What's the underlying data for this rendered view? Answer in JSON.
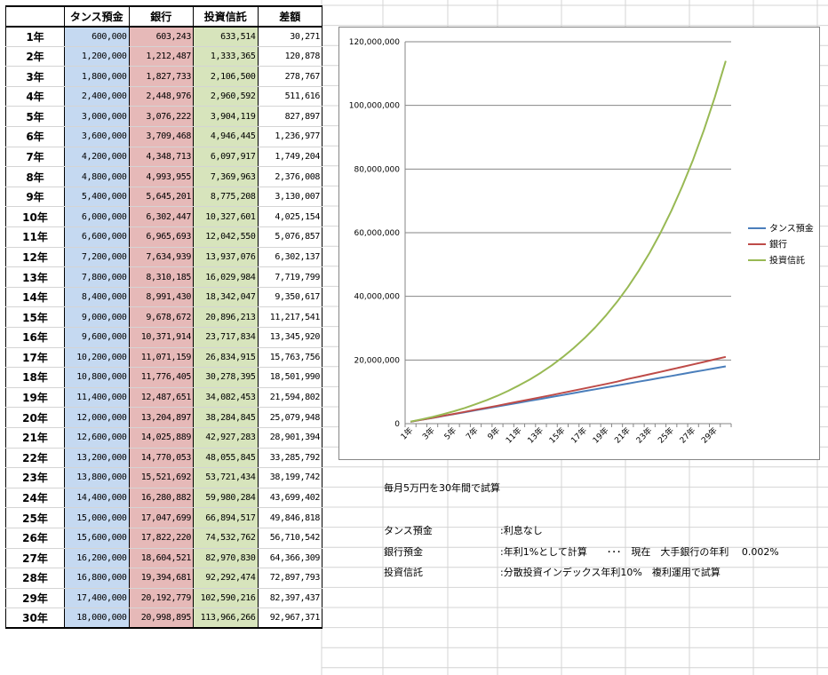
{
  "table": {
    "headers": [
      "",
      "タンス預金",
      "銀行",
      "投資信託",
      "差額"
    ],
    "rows": [
      {
        "year": "1年",
        "tansu": "600,000",
        "bank": "603,243",
        "invest": "633,514",
        "diff": "30,271"
      },
      {
        "year": "2年",
        "tansu": "1,200,000",
        "bank": "1,212,487",
        "invest": "1,333,365",
        "diff": "120,878"
      },
      {
        "year": "3年",
        "tansu": "1,800,000",
        "bank": "1,827,733",
        "invest": "2,106,500",
        "diff": "278,767"
      },
      {
        "year": "4年",
        "tansu": "2,400,000",
        "bank": "2,448,976",
        "invest": "2,960,592",
        "diff": "511,616"
      },
      {
        "year": "5年",
        "tansu": "3,000,000",
        "bank": "3,076,222",
        "invest": "3,904,119",
        "diff": "827,897"
      },
      {
        "year": "6年",
        "tansu": "3,600,000",
        "bank": "3,709,468",
        "invest": "4,946,445",
        "diff": "1,236,977"
      },
      {
        "year": "7年",
        "tansu": "4,200,000",
        "bank": "4,348,713",
        "invest": "6,097,917",
        "diff": "1,749,204"
      },
      {
        "year": "8年",
        "tansu": "4,800,000",
        "bank": "4,993,955",
        "invest": "7,369,963",
        "diff": "2,376,008"
      },
      {
        "year": "9年",
        "tansu": "5,400,000",
        "bank": "5,645,201",
        "invest": "8,775,208",
        "diff": "3,130,007"
      },
      {
        "year": "10年",
        "tansu": "6,000,000",
        "bank": "6,302,447",
        "invest": "10,327,601",
        "diff": "4,025,154"
      },
      {
        "year": "11年",
        "tansu": "6,600,000",
        "bank": "6,965,693",
        "invest": "12,042,550",
        "diff": "5,076,857"
      },
      {
        "year": "12年",
        "tansu": "7,200,000",
        "bank": "7,634,939",
        "invest": "13,937,076",
        "diff": "6,302,137"
      },
      {
        "year": "13年",
        "tansu": "7,800,000",
        "bank": "8,310,185",
        "invest": "16,029,984",
        "diff": "7,719,799"
      },
      {
        "year": "14年",
        "tansu": "8,400,000",
        "bank": "8,991,430",
        "invest": "18,342,047",
        "diff": "9,350,617"
      },
      {
        "year": "15年",
        "tansu": "9,000,000",
        "bank": "9,678,672",
        "invest": "20,896,213",
        "diff": "11,217,541"
      },
      {
        "year": "16年",
        "tansu": "9,600,000",
        "bank": "10,371,914",
        "invest": "23,717,834",
        "diff": "13,345,920"
      },
      {
        "year": "17年",
        "tansu": "10,200,000",
        "bank": "11,071,159",
        "invest": "26,834,915",
        "diff": "15,763,756"
      },
      {
        "year": "18年",
        "tansu": "10,800,000",
        "bank": "11,776,405",
        "invest": "30,278,395",
        "diff": "18,501,990"
      },
      {
        "year": "19年",
        "tansu": "11,400,000",
        "bank": "12,487,651",
        "invest": "34,082,453",
        "diff": "21,594,802"
      },
      {
        "year": "20年",
        "tansu": "12,000,000",
        "bank": "13,204,897",
        "invest": "38,284,845",
        "diff": "25,079,948"
      },
      {
        "year": "21年",
        "tansu": "12,600,000",
        "bank": "14,025,889",
        "invest": "42,927,283",
        "diff": "28,901,394"
      },
      {
        "year": "22年",
        "tansu": "13,200,000",
        "bank": "14,770,053",
        "invest": "48,055,845",
        "diff": "33,285,792"
      },
      {
        "year": "23年",
        "tansu": "13,800,000",
        "bank": "15,521,692",
        "invest": "53,721,434",
        "diff": "38,199,742"
      },
      {
        "year": "24年",
        "tansu": "14,400,000",
        "bank": "16,280,882",
        "invest": "59,980,284",
        "diff": "43,699,402"
      },
      {
        "year": "25年",
        "tansu": "15,000,000",
        "bank": "17,047,699",
        "invest": "66,894,517",
        "diff": "49,846,818"
      },
      {
        "year": "26年",
        "tansu": "15,600,000",
        "bank": "17,822,220",
        "invest": "74,532,762",
        "diff": "56,710,542"
      },
      {
        "year": "27年",
        "tansu": "16,200,000",
        "bank": "18,604,521",
        "invest": "82,970,830",
        "diff": "64,366,309"
      },
      {
        "year": "28年",
        "tansu": "16,800,000",
        "bank": "19,394,681",
        "invest": "92,292,474",
        "diff": "72,897,793"
      },
      {
        "year": "29年",
        "tansu": "17,400,000",
        "bank": "20,192,779",
        "invest": "102,590,216",
        "diff": "82,397,437"
      },
      {
        "year": "30年",
        "tansu": "18,000,000",
        "bank": "20,998,895",
        "invest": "113,966,266",
        "diff": "92,967,371"
      }
    ]
  },
  "colors": {
    "tansu_fill": "#c5d9f1",
    "bank_fill": "#e6b9b8",
    "invest_fill": "#d7e4bc",
    "grid": "#d4d4d4",
    "line_tansu": "#4a7ebb",
    "line_bank": "#be4b48",
    "line_invest": "#98b954"
  },
  "chart_data": {
    "type": "line",
    "title": "",
    "xlabel": "",
    "ylabel": "",
    "ylim": [
      0,
      120000000
    ],
    "y_ticks": [
      "0",
      "20,000,000",
      "40,000,000",
      "60,000,000",
      "80,000,000",
      "100,000,000",
      "120,000,000"
    ],
    "y_tick_values": [
      0,
      20000000,
      40000000,
      60000000,
      80000000,
      100000000,
      120000000
    ],
    "x": [
      "1年",
      "2年",
      "3年",
      "4年",
      "5年",
      "6年",
      "7年",
      "8年",
      "9年",
      "10年",
      "11年",
      "12年",
      "13年",
      "14年",
      "15年",
      "16年",
      "17年",
      "18年",
      "19年",
      "20年",
      "21年",
      "22年",
      "23年",
      "24年",
      "25年",
      "26年",
      "27年",
      "28年",
      "29年",
      "30年"
    ],
    "x_tick_labels": [
      "1年",
      "3年",
      "5年",
      "7年",
      "9年",
      "11年",
      "13年",
      "15年",
      "17年",
      "19年",
      "21年",
      "23年",
      "25年",
      "27年",
      "29年"
    ],
    "grid": true,
    "legend_position": "right",
    "series": [
      {
        "name": "タンス預金",
        "color": "#4a7ebb",
        "values": [
          600000,
          1200000,
          1800000,
          2400000,
          3000000,
          3600000,
          4200000,
          4800000,
          5400000,
          6000000,
          6600000,
          7200000,
          7800000,
          8400000,
          9000000,
          9600000,
          10200000,
          10800000,
          11400000,
          12000000,
          12600000,
          13200000,
          13800000,
          14400000,
          15000000,
          15600000,
          16200000,
          16800000,
          17400000,
          18000000
        ]
      },
      {
        "name": "銀行",
        "color": "#be4b48",
        "values": [
          603243,
          1212487,
          1827733,
          2448976,
          3076222,
          3709468,
          4348713,
          4993955,
          5645201,
          6302447,
          6965693,
          7634939,
          8310185,
          8991430,
          9678672,
          10371914,
          11071159,
          11776405,
          12487651,
          13204897,
          14025889,
          14770053,
          15521692,
          16280882,
          17047699,
          17822220,
          18604521,
          19394681,
          20192779,
          20998895
        ]
      },
      {
        "name": "投資信託",
        "color": "#98b954",
        "values": [
          633514,
          1333365,
          2106500,
          2960592,
          3904119,
          4946445,
          6097917,
          7369963,
          8775208,
          10327601,
          12042550,
          13937076,
          16029984,
          18342047,
          20896213,
          23717834,
          26834915,
          30278395,
          34082453,
          38284845,
          42927283,
          48055845,
          53721434,
          59980284,
          66894517,
          74532762,
          82970830,
          92292474,
          102590216,
          113966266
        ]
      }
    ]
  },
  "notes": {
    "summary": "毎月5万円を30年間で試算",
    "tansu_label": "タンス預金",
    "tansu_desc": ":利息なし",
    "bank_label": "銀行預金",
    "bank_desc": ":年利1%として計算　　･･･　現在　大手銀行の年利　 0.002%",
    "invest_label": "投資信託",
    "invest_desc": ":分散投資インデックス年利10%　複利運用で試算"
  }
}
